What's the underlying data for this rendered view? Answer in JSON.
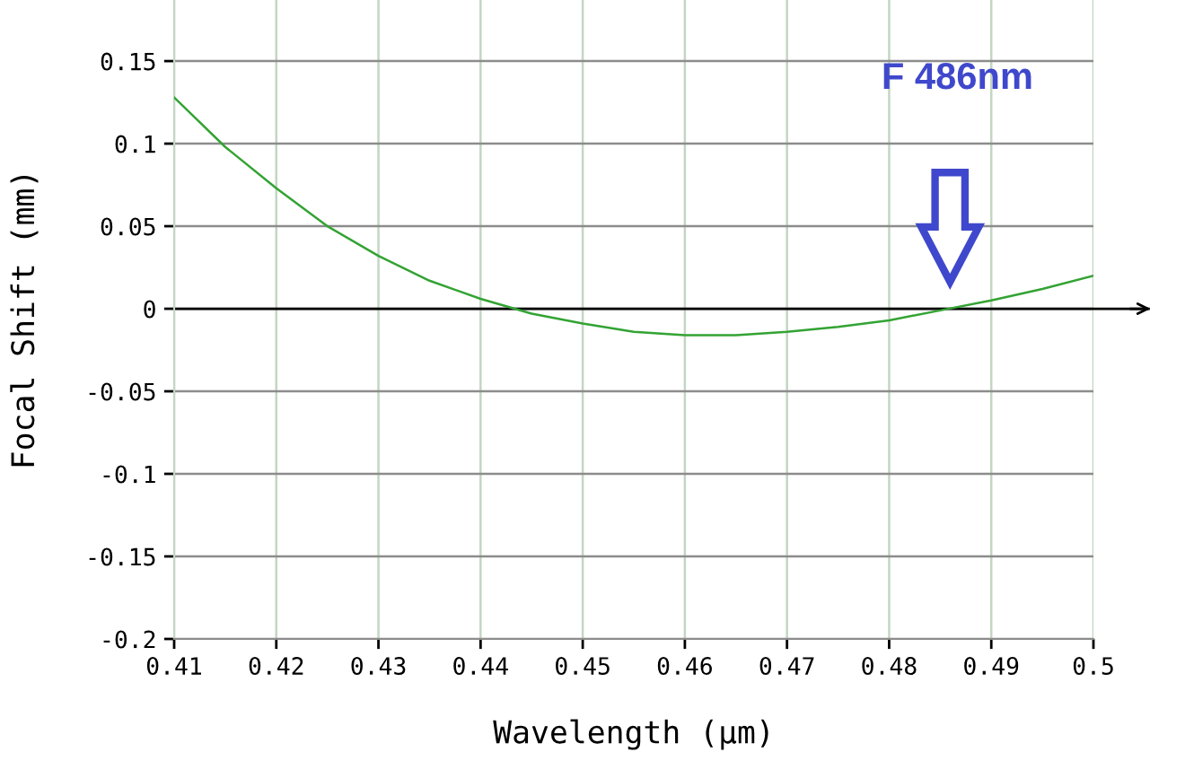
{
  "chart_data": {
    "type": "line",
    "xlabel": "Wavelength (μm)",
    "ylabel": "Focal Shift (mm)",
    "x": [
      0.41,
      0.415,
      0.42,
      0.425,
      0.43,
      0.435,
      0.44,
      0.445,
      0.45,
      0.455,
      0.46,
      0.465,
      0.47,
      0.475,
      0.48,
      0.485,
      0.49,
      0.495,
      0.5
    ],
    "series": [
      {
        "color": "#33a333",
        "values": [
          0.128,
          0.098,
          0.073,
          0.05,
          0.032,
          0.017,
          0.006,
          -0.003,
          -0.009,
          -0.014,
          -0.016,
          -0.016,
          -0.014,
          -0.011,
          -0.007,
          -0.001,
          0.005,
          0.012,
          0.02
        ]
      }
    ],
    "xlim": [
      0.41,
      0.5
    ],
    "ylim": [
      -0.2,
      0.187
    ],
    "xticks": [
      0.41,
      0.42,
      0.43,
      0.44,
      0.45,
      0.46,
      0.47,
      0.48,
      0.49,
      0.5
    ],
    "yticks": [
      -0.2,
      -0.15,
      -0.1,
      -0.05,
      0,
      0.05,
      0.1,
      0.15
    ],
    "grid": true,
    "ref_lines": [
      {
        "axis": "y",
        "value": 0,
        "color": "#000000"
      }
    ],
    "annotations": [
      "F 486nm"
    ]
  }
}
